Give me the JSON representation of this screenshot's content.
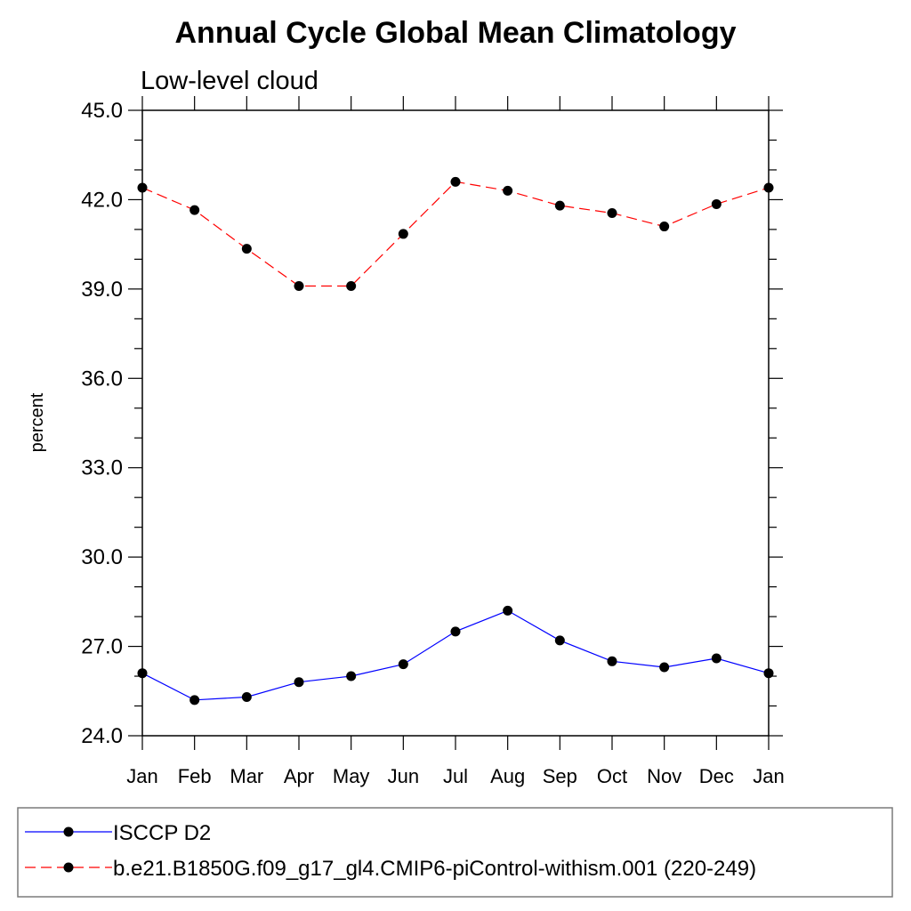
{
  "chart_data": {
    "type": "line",
    "title": "Annual Cycle Global Mean Climatology",
    "subtitle": "Low-level cloud",
    "xlabel": "",
    "ylabel": "percent",
    "categories": [
      "Jan",
      "Feb",
      "Mar",
      "Apr",
      "May",
      "Jun",
      "Jul",
      "Aug",
      "Sep",
      "Oct",
      "Nov",
      "Dec",
      "Jan"
    ],
    "ylim": [
      24.0,
      45.0
    ],
    "yticks": [
      "24.0",
      "27.0",
      "30.0",
      "33.0",
      "36.0",
      "39.0",
      "42.0",
      "45.0"
    ],
    "grid": false,
    "legend_position": "bottom",
    "series": [
      {
        "name": "ISCCP D2",
        "color": "#0000ff",
        "line_style": "solid",
        "marker": "filled-circle",
        "values": [
          26.1,
          25.2,
          25.3,
          25.8,
          26.0,
          26.4,
          27.5,
          28.2,
          27.2,
          26.5,
          26.3,
          26.6,
          26.1
        ]
      },
      {
        "name": "b.e21.B1850G.f09_g17_gl4.CMIP6-piControl-withism.001 (220-249)",
        "color": "#ff0000",
        "line_style": "dashed",
        "marker": "filled-circle",
        "values": [
          42.4,
          41.65,
          40.35,
          39.1,
          39.1,
          40.85,
          42.6,
          42.3,
          41.8,
          41.55,
          41.1,
          41.85,
          42.4
        ]
      }
    ]
  }
}
